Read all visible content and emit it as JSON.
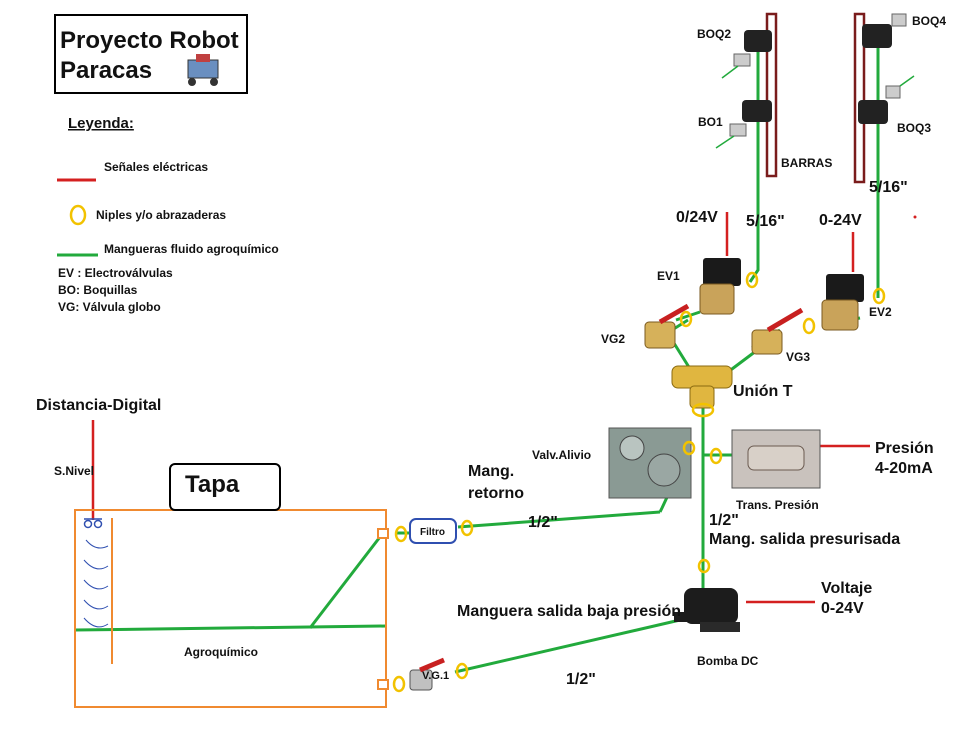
{
  "title": {
    "line1": "Proyecto Robot",
    "line2": "Paracas"
  },
  "legend": {
    "heading": "Leyenda:",
    "items": [
      {
        "label": "Señales eléctricas",
        "symbol": "red-line"
      },
      {
        "label": "Niples y/o abrazaderas",
        "symbol": "yellow-ring"
      },
      {
        "label": "Mangueras fluido agroquímico",
        "symbol": "green-line"
      }
    ],
    "abbreviations": [
      "EV : Electroválvulas",
      "BO: Boquillas",
      "VG: Válvula globo"
    ]
  },
  "labels": {
    "boq2": "BOQ2",
    "boq4": "BOQ4",
    "bo1": "BO1",
    "boq3": "BOQ3",
    "barras": "BARRAS",
    "fit_left": "5/16\"",
    "fit_right": "5/16\"",
    "volt_left": "0/24V",
    "volt_right": "0-24V",
    "ev1": "EV1",
    "ev2": "EV2",
    "vg2": "VG2",
    "vg3": "VG3",
    "union_t": "Unión T",
    "distancia": "Distancia-Digital",
    "s_nivel": "S.Nivel",
    "tapa": "Tapa",
    "valv_alivio": "Valv.Alivio",
    "mang_retorno_1": "Mang.",
    "mang_retorno_2": "retorno",
    "presion_1": "Presión",
    "presion_2": "4-20mA",
    "trans_presion": "Trans. Presión",
    "filtro": "Filtro",
    "half_return": "1/2\"",
    "half_press": "1/2\"",
    "mang_salida_pres": "Mang. salida presurisada",
    "voltaje_1": "Voltaje",
    "voltaje_2": "0-24V",
    "mang_baja": "Manguera salida baja presión",
    "agroquimico": "Agroquímico",
    "vg1": "V.G.1",
    "half_low": "1/2\"",
    "bomba": "Bomba DC"
  },
  "colors": {
    "hose": "#22aa3c",
    "signal": "#d42020",
    "ring": "#f2c200",
    "tank": "#f08a30",
    "filter": "#2f4fb0",
    "bar": "#7a1c1c"
  }
}
